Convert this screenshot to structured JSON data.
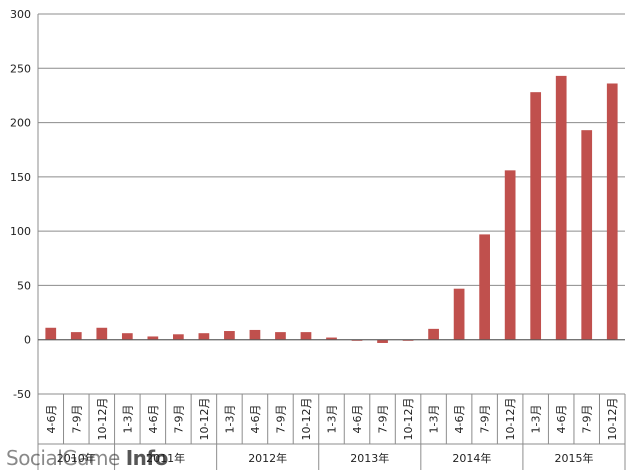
{
  "chart_data": {
    "type": "bar",
    "categories": [
      "4-6月",
      "7-9月",
      "10-12月",
      "1-3月",
      "4-6月",
      "7-9月",
      "10-12月",
      "1-3月",
      "4-6月",
      "7-9月",
      "10-12月",
      "1-3月",
      "4-6月",
      "7-9月",
      "10-12月",
      "1-3月",
      "4-6月",
      "7-9月",
      "10-12月",
      "1-3月",
      "4-6月",
      "7-9月",
      "10-12月"
    ],
    "values": [
      11,
      7,
      11,
      6,
      3,
      5,
      6,
      8,
      9,
      7,
      7,
      2,
      -1,
      -3,
      -1,
      10,
      47,
      97,
      156,
      228,
      243,
      193,
      236
    ],
    "year_groups": [
      {
        "label": "2010年",
        "count": 3
      },
      {
        "label": "2011年",
        "count": 4
      },
      {
        "label": "2012年",
        "count": 4
      },
      {
        "label": "2013年",
        "count": 4
      },
      {
        "label": "2014年",
        "count": 4
      },
      {
        "label": "2015年",
        "count": 4
      }
    ],
    "ylim": [
      -50,
      300
    ],
    "yticks": [
      -50,
      0,
      50,
      100,
      150,
      200,
      250,
      300
    ],
    "grid": true,
    "bar_color": "#c0504d",
    "title": "",
    "xlabel": "",
    "ylabel": ""
  },
  "watermark": {
    "text1": "SocialGame ",
    "text2": "Info"
  }
}
